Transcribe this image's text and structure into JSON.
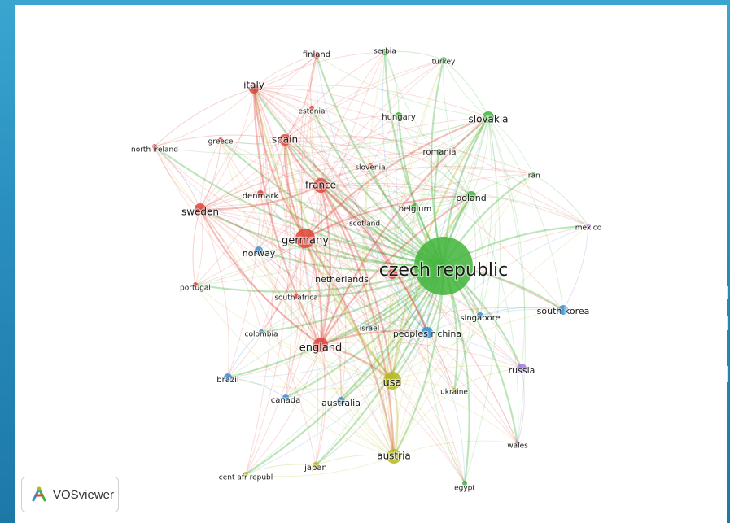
{
  "app": {
    "brand": "VOSviewer"
  },
  "colors": {
    "red": "#e0433a",
    "green": "#3fb43a",
    "blue": "#3b8fd1",
    "yellow": "#b5b81e",
    "purple": "#a57ad8"
  },
  "nodes": [
    {
      "id": "czech_republic",
      "label": "czech republic",
      "cluster": "green"
    },
    {
      "id": "germany",
      "label": "germany",
      "cluster": "red"
    },
    {
      "id": "france",
      "label": "france",
      "cluster": "red"
    },
    {
      "id": "spain",
      "label": "spain",
      "cluster": "red"
    },
    {
      "id": "italy",
      "label": "italy",
      "cluster": "red"
    },
    {
      "id": "sweden",
      "label": "sweden",
      "cluster": "red"
    },
    {
      "id": "england",
      "label": "england",
      "cluster": "red"
    },
    {
      "id": "finland",
      "label": "finland",
      "cluster": "red"
    },
    {
      "id": "estonia",
      "label": "estonia",
      "cluster": "red"
    },
    {
      "id": "greece",
      "label": "greece",
      "cluster": "red"
    },
    {
      "id": "north_ireland",
      "label": "north ireland",
      "cluster": "red"
    },
    {
      "id": "denmark",
      "label": "denmark",
      "cluster": "red"
    },
    {
      "id": "slovenia",
      "label": "slovenia",
      "cluster": "red"
    },
    {
      "id": "scotland",
      "label": "scotland",
      "cluster": "red"
    },
    {
      "id": "netherlands",
      "label": "netherlands",
      "cluster": "red"
    },
    {
      "id": "portugal",
      "label": "portugal",
      "cluster": "red"
    },
    {
      "id": "south_africa",
      "label": "south africa",
      "cluster": "red"
    },
    {
      "id": "serbia",
      "label": "serbia",
      "cluster": "green"
    },
    {
      "id": "turkey",
      "label": "turkey",
      "cluster": "green"
    },
    {
      "id": "slovakia",
      "label": "slovakia",
      "cluster": "green"
    },
    {
      "id": "hungary",
      "label": "hungary",
      "cluster": "green"
    },
    {
      "id": "romania",
      "label": "romania",
      "cluster": "green"
    },
    {
      "id": "poland",
      "label": "poland",
      "cluster": "green"
    },
    {
      "id": "belgium",
      "label": "belgium",
      "cluster": "green"
    },
    {
      "id": "iran",
      "label": "iran",
      "cluster": "green"
    },
    {
      "id": "egypt",
      "label": "egypt",
      "cluster": "green"
    },
    {
      "id": "norway",
      "label": "norway",
      "cluster": "blue"
    },
    {
      "id": "colombia",
      "label": "colombia",
      "cluster": "blue"
    },
    {
      "id": "brazil",
      "label": "brazil",
      "cluster": "blue"
    },
    {
      "id": "canada",
      "label": "canada",
      "cluster": "blue"
    },
    {
      "id": "australia",
      "label": "australia",
      "cluster": "blue"
    },
    {
      "id": "israel",
      "label": "israel",
      "cluster": "blue"
    },
    {
      "id": "peoples_r_china",
      "label": "peoples r china",
      "cluster": "blue"
    },
    {
      "id": "singapore",
      "label": "singapore",
      "cluster": "blue"
    },
    {
      "id": "south_korea",
      "label": "south korea",
      "cluster": "blue"
    },
    {
      "id": "usa",
      "label": "usa",
      "cluster": "yellow"
    },
    {
      "id": "austria",
      "label": "austria",
      "cluster": "yellow"
    },
    {
      "id": "japan",
      "label": "japan",
      "cluster": "yellow"
    },
    {
      "id": "cent_afr_republ",
      "label": "cent afr republ",
      "cluster": "yellow"
    },
    {
      "id": "ukraine",
      "label": "ukraine",
      "cluster": "yellow"
    },
    {
      "id": "russia",
      "label": "russia",
      "cluster": "purple"
    },
    {
      "id": "mexico",
      "label": "mexico",
      "cluster": "purple"
    },
    {
      "id": "wales",
      "label": "wales",
      "cluster": "purple"
    }
  ]
}
